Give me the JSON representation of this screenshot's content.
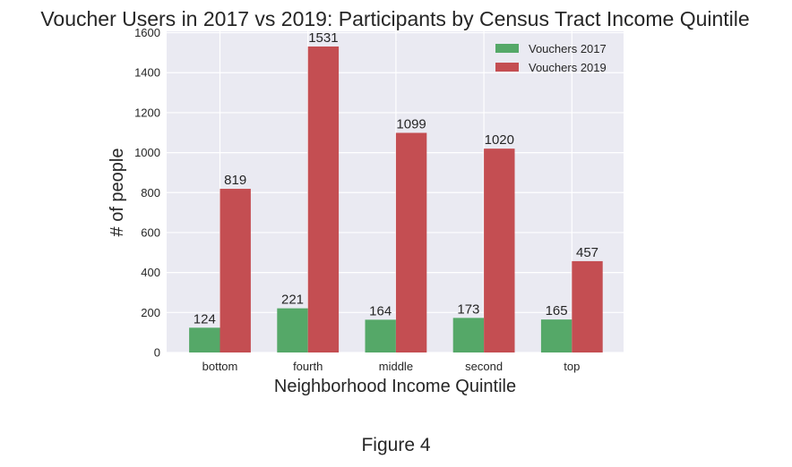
{
  "chart_data": {
    "type": "bar",
    "title": "Voucher Users in 2017 vs 2019: Participants by Census Tract Income Quintile",
    "xlabel": "Neighborhood Income Quintile",
    "ylabel": "# of people",
    "categories": [
      "bottom",
      "fourth",
      "middle",
      "second",
      "top"
    ],
    "series": [
      {
        "name": "Vouchers 2017",
        "values": [
          124,
          221,
          164,
          173,
          165
        ],
        "color": "#55a868"
      },
      {
        "name": "Vouchers 2019",
        "values": [
          819,
          1531,
          1099,
          1020,
          457
        ],
        "color": "#c44e52"
      }
    ],
    "ylim": [
      0,
      1607
    ],
    "yticks": [
      0,
      200,
      400,
      600,
      800,
      1000,
      1200,
      1400,
      1600
    ],
    "grid": true,
    "legend_position": "top-right",
    "plot_background": "#eaeaf2"
  },
  "caption": "Figure 4"
}
